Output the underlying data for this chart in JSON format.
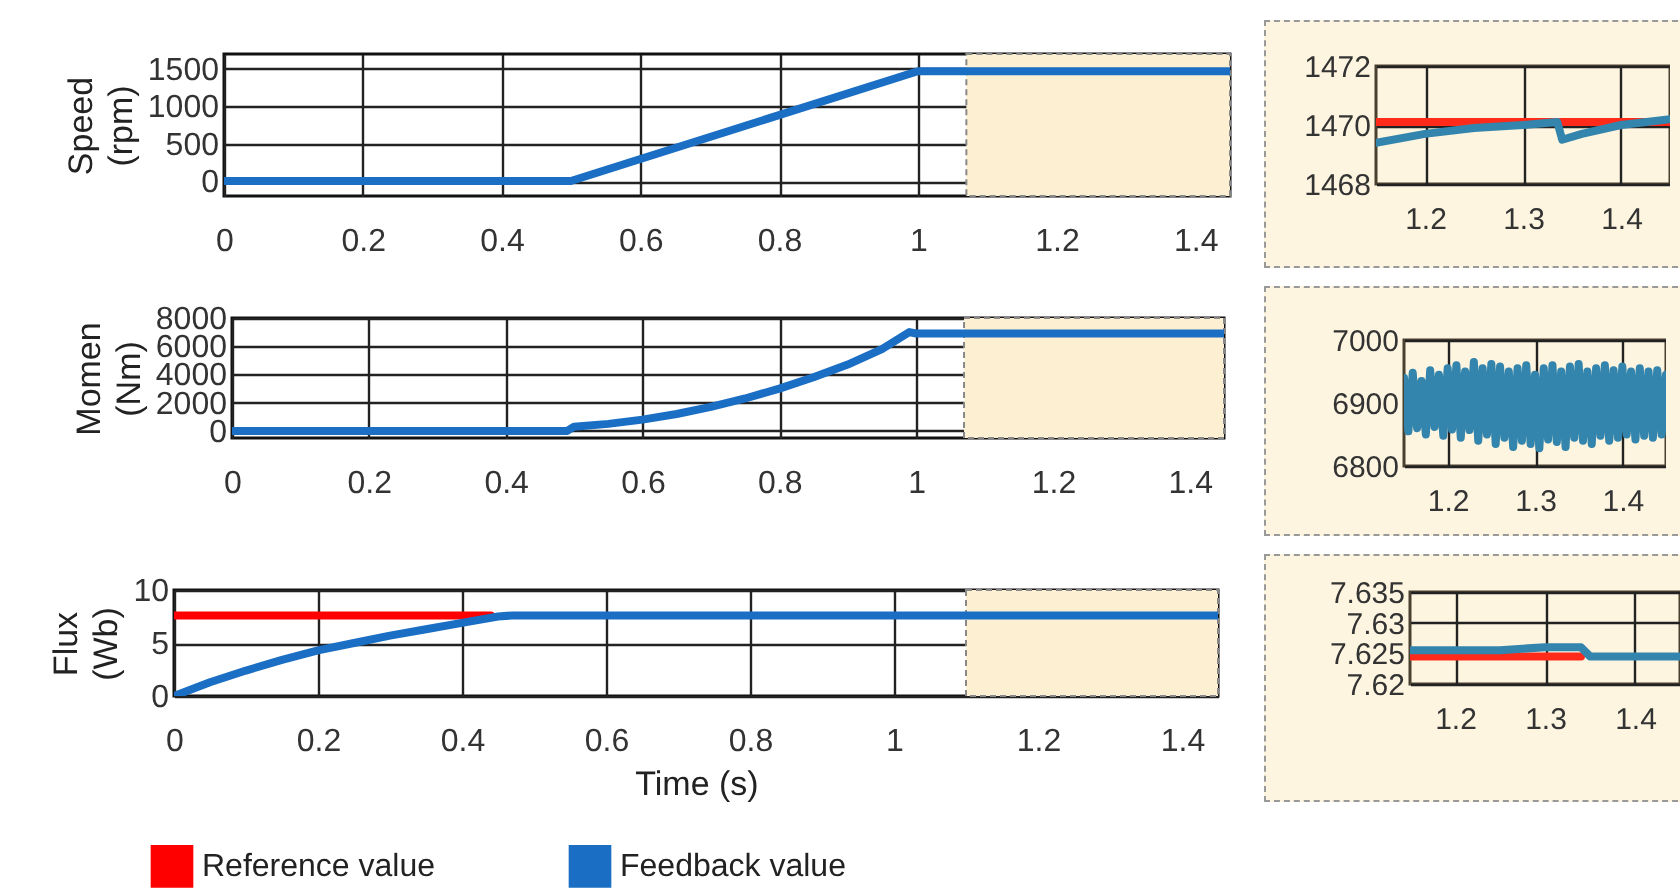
{
  "chart_data": [
    {
      "type": "line",
      "ylabel": "Speed (rpm)",
      "xlim": [
        0,
        1.45
      ],
      "xticks": [
        0,
        0.2,
        0.4,
        0.6,
        0.8,
        1,
        1.2,
        1.4
      ],
      "ylim": [
        -200,
        1700
      ],
      "yticks": [
        0,
        500,
        1000,
        1500
      ],
      "grid": true,
      "series": [
        {
          "color": "#1a6fc4",
          "x": [
            0,
            0.5,
            1.0,
            1.45
          ],
          "values": [
            0,
            0,
            1470,
            1470
          ]
        }
      ],
      "bands": [
        {
          "axis": "x",
          "from": 1.07,
          "to": 1.45,
          "color": "#fdf0d2"
        }
      ]
    },
    {
      "type": "line",
      "ylabel": "Momen (Nm)",
      "xlim": [
        0,
        1.45
      ],
      "xticks": [
        0,
        0.2,
        0.4,
        0.6,
        0.8,
        1,
        1.2,
        1.4
      ],
      "ylim": [
        -500,
        8000
      ],
      "yticks": [
        0,
        2000,
        4000,
        6000,
        8000
      ],
      "grid": true,
      "series": [
        {
          "color": "#1a6fc4",
          "x": [
            0,
            0.49,
            0.5,
            0.55,
            0.6,
            0.65,
            0.7,
            0.75,
            0.8,
            0.85,
            0.9,
            0.95,
            0.99,
            1.0,
            1.45
          ],
          "values": [
            0,
            0,
            300,
            500,
            800,
            1200,
            1700,
            2300,
            3000,
            3800,
            4700,
            5800,
            7000,
            6900,
            6900
          ]
        }
      ],
      "bands": [
        {
          "axis": "x",
          "from": 1.07,
          "to": 1.45,
          "color": "#fdf0d2"
        }
      ]
    },
    {
      "type": "line",
      "ylabel": "Flux (Wb)",
      "xlabel": "Time (s)",
      "xlim": [
        0,
        1.45
      ],
      "xticks": [
        0,
        0.2,
        0.4,
        0.6,
        0.8,
        1,
        1.2,
        1.4
      ],
      "ylim": [
        0,
        10
      ],
      "yticks": [
        0,
        5,
        10
      ],
      "grid": true,
      "legend": "bottom",
      "series": [
        {
          "name": "Reference value",
          "color": "#ff0000",
          "x": [
            0,
            0.44
          ],
          "values": [
            7.6,
            7.6
          ]
        },
        {
          "name": "Feedback value",
          "color": "#1a6fc4",
          "x": [
            0,
            0.05,
            0.1,
            0.15,
            0.2,
            0.25,
            0.3,
            0.35,
            0.4,
            0.45,
            0.47,
            1.45
          ],
          "values": [
            0,
            1.3,
            2.4,
            3.4,
            4.3,
            5.0,
            5.7,
            6.3,
            6.9,
            7.5,
            7.6,
            7.6
          ]
        }
      ],
      "bands": [
        {
          "axis": "x",
          "from": 1.1,
          "to": 1.45,
          "color": "#fdf0d2"
        }
      ]
    },
    {
      "type": "line",
      "xlim": [
        1.15,
        1.45
      ],
      "xticks": [
        1.2,
        1.3,
        1.4
      ],
      "ylim": [
        1468,
        1472
      ],
      "yticks": [
        1468,
        1470,
        1472
      ],
      "grid": true,
      "series": [
        {
          "color": "#ff2a1a",
          "x": [
            1.15,
            1.45
          ],
          "values": [
            1470.1,
            1470.1
          ]
        },
        {
          "color": "#3385ad",
          "x": [
            1.15,
            1.2,
            1.25,
            1.3,
            1.335,
            1.34,
            1.36,
            1.4,
            1.45
          ],
          "values": [
            1469.4,
            1469.7,
            1469.9,
            1470.0,
            1470.1,
            1469.5,
            1469.7,
            1470.0,
            1470.2
          ]
        }
      ]
    },
    {
      "type": "line",
      "xlim": [
        1.15,
        1.45
      ],
      "xticks": [
        1.2,
        1.3,
        1.4
      ],
      "ylim": [
        6800,
        7000
      ],
      "yticks": [
        6800,
        6900,
        7000
      ],
      "grid": true,
      "series": [
        {
          "color": "#3385ad",
          "x": [
            1.15,
            1.155,
            1.16,
            1.165,
            1.17,
            1.175,
            1.18,
            1.185,
            1.19,
            1.195,
            1.2,
            1.205,
            1.21,
            1.215,
            1.22,
            1.225,
            1.23,
            1.235,
            1.24,
            1.245,
            1.25,
            1.255,
            1.26,
            1.265,
            1.27,
            1.275,
            1.28,
            1.285,
            1.29,
            1.295,
            1.3,
            1.305,
            1.31,
            1.315,
            1.32,
            1.325,
            1.33,
            1.335,
            1.34,
            1.345,
            1.35,
            1.355,
            1.36,
            1.365,
            1.37,
            1.375,
            1.38,
            1.385,
            1.39,
            1.395,
            1.4,
            1.405,
            1.41,
            1.415,
            1.42,
            1.425,
            1.43,
            1.435,
            1.44,
            1.445,
            1.45
          ],
          "values": [
            6940,
            6855,
            6948,
            6860,
            6935,
            6850,
            6952,
            6862,
            6945,
            6848,
            6955,
            6858,
            6960,
            6845,
            6950,
            6857,
            6965,
            6840,
            6955,
            6850,
            6962,
            6835,
            6958,
            6845,
            6950,
            6830,
            6955,
            6840,
            6960,
            6835,
            6945,
            6828,
            6955,
            6842,
            6960,
            6838,
            6950,
            6830,
            6958,
            6845,
            6962,
            6840,
            6950,
            6835,
            6955,
            6848,
            6960,
            6840,
            6952,
            6845,
            6958,
            6850,
            6950,
            6842,
            6955,
            6848,
            6950,
            6845,
            6952,
            6850,
            6945
          ]
        }
      ]
    },
    {
      "type": "line",
      "xlim": [
        1.15,
        1.45
      ],
      "xticks": [
        1.2,
        1.3,
        1.4
      ],
      "ylim": [
        7.62,
        7.635
      ],
      "yticks": [
        7.62,
        7.625,
        7.63,
        7.635
      ],
      "grid": true,
      "series": [
        {
          "color": "#ff2a1a",
          "x": [
            1.15,
            1.34
          ],
          "values": [
            7.6245,
            7.6245
          ]
        },
        {
          "color": "#3385ad",
          "x": [
            1.15,
            1.2,
            1.25,
            1.3,
            1.34,
            1.35,
            1.4,
            1.45
          ],
          "values": [
            7.6255,
            7.6255,
            7.6255,
            7.626,
            7.626,
            7.6245,
            7.6245,
            7.6245
          ]
        }
      ]
    }
  ]
}
